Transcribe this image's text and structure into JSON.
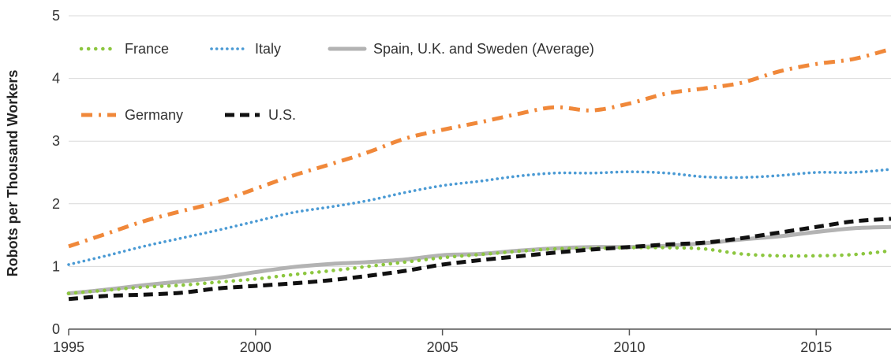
{
  "chart_data": {
    "type": "line",
    "title": "",
    "xlabel": "",
    "ylabel": "Robots per Thousand Workers",
    "xlim": [
      1995,
      2017
    ],
    "ylim": [
      0,
      5
    ],
    "x_ticks": [
      "1995",
      "2000",
      "2005",
      "2010",
      "2015"
    ],
    "y_ticks": [
      "0",
      "1",
      "2",
      "3",
      "4",
      "5"
    ],
    "grid": "horizontal",
    "legend_position": "top-left",
    "x": [
      1995,
      1996,
      1997,
      1998,
      1999,
      2000,
      2001,
      2002,
      2003,
      2004,
      2005,
      2006,
      2007,
      2008,
      2009,
      2010,
      2011,
      2012,
      2013,
      2014,
      2015,
      2016,
      2017
    ],
    "series": [
      {
        "name": "France",
        "color": "#8cc63f",
        "style": "dotted-round",
        "values": [
          0.57,
          0.62,
          0.67,
          0.7,
          0.75,
          0.8,
          0.87,
          0.93,
          1.0,
          1.07,
          1.14,
          1.19,
          1.24,
          1.28,
          1.29,
          1.3,
          1.3,
          1.28,
          1.2,
          1.17,
          1.17,
          1.19,
          1.25
        ]
      },
      {
        "name": "Italy",
        "color": "#4a9ad4",
        "style": "dotted",
        "values": [
          1.03,
          1.17,
          1.32,
          1.45,
          1.58,
          1.72,
          1.86,
          1.95,
          2.05,
          2.18,
          2.29,
          2.36,
          2.44,
          2.49,
          2.49,
          2.51,
          2.49,
          2.43,
          2.42,
          2.45,
          2.5,
          2.5,
          2.55
        ]
      },
      {
        "name": "Spain, U.K. and Sweden (Average)",
        "color": "#b3b3b3",
        "style": "solid",
        "values": [
          0.57,
          0.63,
          0.7,
          0.76,
          0.82,
          0.91,
          0.99,
          1.04,
          1.07,
          1.11,
          1.18,
          1.2,
          1.25,
          1.29,
          1.31,
          1.31,
          1.33,
          1.37,
          1.43,
          1.48,
          1.55,
          1.61,
          1.63
        ]
      },
      {
        "name": "Germany",
        "color": "#f0883a",
        "style": "dash-dot",
        "values": [
          1.32,
          1.52,
          1.72,
          1.88,
          2.03,
          2.24,
          2.45,
          2.63,
          2.82,
          3.04,
          3.18,
          3.3,
          3.43,
          3.54,
          3.49,
          3.6,
          3.76,
          3.84,
          3.93,
          4.11,
          4.23,
          4.31,
          4.47
        ]
      },
      {
        "name": "U.S.",
        "color": "#111111",
        "style": "dashed",
        "values": [
          0.48,
          0.53,
          0.55,
          0.58,
          0.65,
          0.69,
          0.73,
          0.78,
          0.85,
          0.93,
          1.03,
          1.1,
          1.16,
          1.22,
          1.27,
          1.31,
          1.35,
          1.38,
          1.45,
          1.54,
          1.63,
          1.72,
          1.76
        ]
      }
    ]
  }
}
